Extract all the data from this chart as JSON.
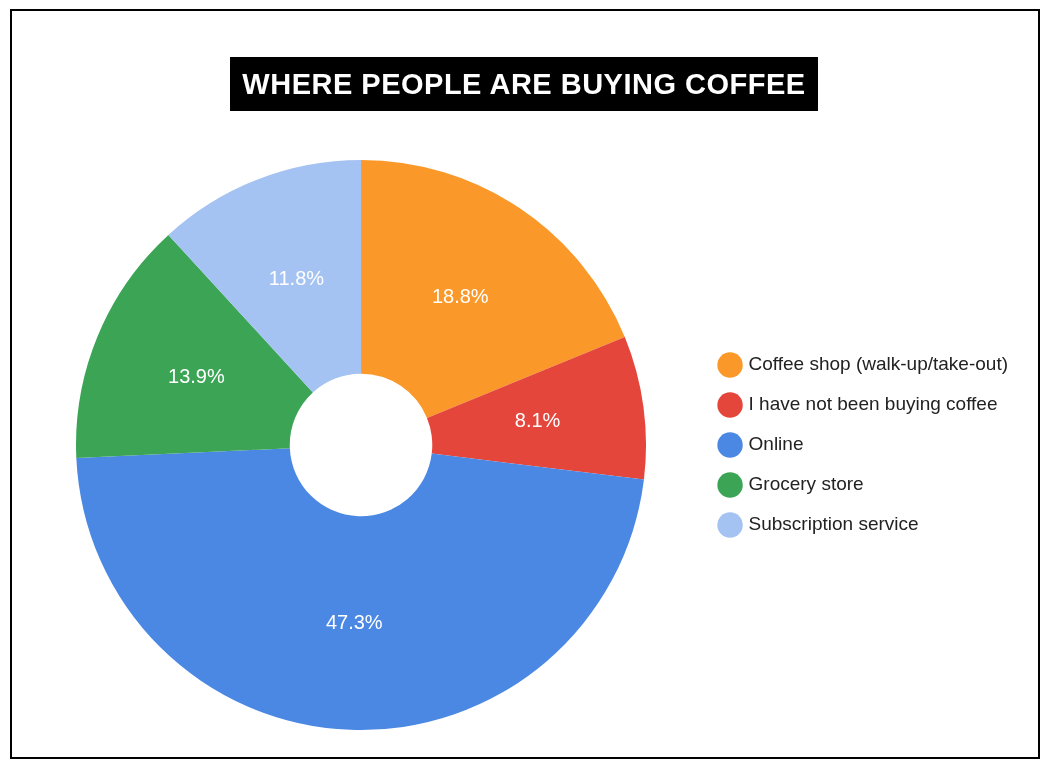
{
  "chart_data": {
    "type": "donut",
    "title": "WHERE PEOPLE ARE BUYING COFFEE",
    "categories": [
      "Coffee shop (walk-up/take-out)",
      "I have not been buying coffee",
      "Online",
      "Grocery store",
      "Subscription service"
    ],
    "values": [
      18.8,
      8.1,
      47.3,
      13.9,
      11.8
    ],
    "value_labels": [
      "18.8%",
      "8.1%",
      "47.3%",
      "13.9%",
      "11.8%"
    ],
    "colors": [
      "#fa9829",
      "#e4463c",
      "#4b88e4",
      "#3ba555",
      "#a4c2f2"
    ],
    "legend": "right"
  }
}
